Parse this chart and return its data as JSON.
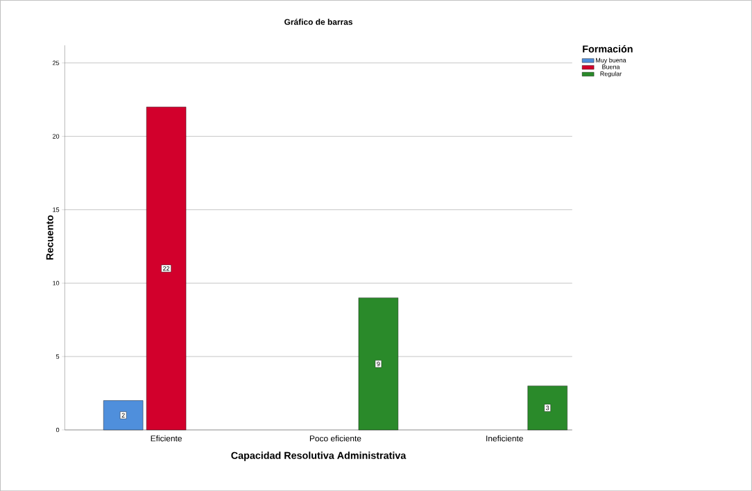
{
  "chart_data": {
    "type": "bar",
    "title": "Gráfico de barras",
    "xlabel": "Capacidad Resolutiva Administrativa",
    "ylabel": "Recuento",
    "legend_title": "Formación",
    "categories": [
      "Eficiente",
      "Poco eficiente",
      "Ineficiente"
    ],
    "series": [
      {
        "name": "Muy buena",
        "color": "#4f8fdc",
        "values": [
          2,
          null,
          null
        ]
      },
      {
        "name": "Buena",
        "color": "#d2002c",
        "values": [
          22,
          null,
          null
        ]
      },
      {
        "name": "Regular",
        "color": "#2a8a2a",
        "values": [
          null,
          9,
          3
        ]
      }
    ],
    "ylim": [
      0,
      26.2
    ],
    "yticks": [
      0,
      5,
      10,
      15,
      20,
      25
    ],
    "grid": "y",
    "legend": "top right",
    "data_labels": true
  }
}
